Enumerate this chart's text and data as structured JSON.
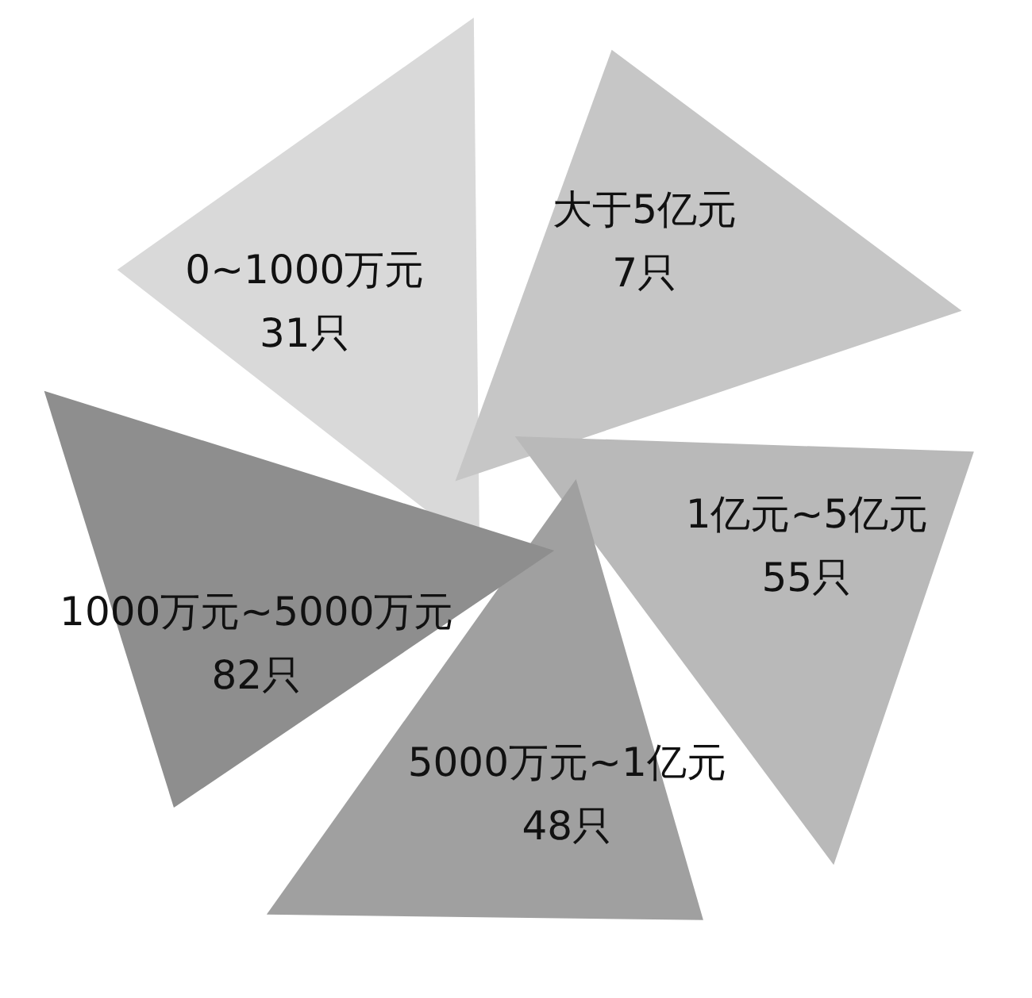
{
  "chart_data": {
    "type": "other",
    "categories": [
      "0~1000万元",
      "大于5亿元",
      "1亿元~5亿元",
      "5000万元~1亿元",
      "1000万元~5000万元"
    ],
    "values": [
      31,
      7,
      55,
      48,
      82
    ],
    "value_labels": [
      "31只",
      "7只",
      "55只",
      "48只",
      "82只"
    ],
    "colors": [
      "#d9d9d9",
      "#c6c6c6",
      "#b9b9b9",
      "#a0a0a0",
      "#8e8e8e"
    ]
  }
}
